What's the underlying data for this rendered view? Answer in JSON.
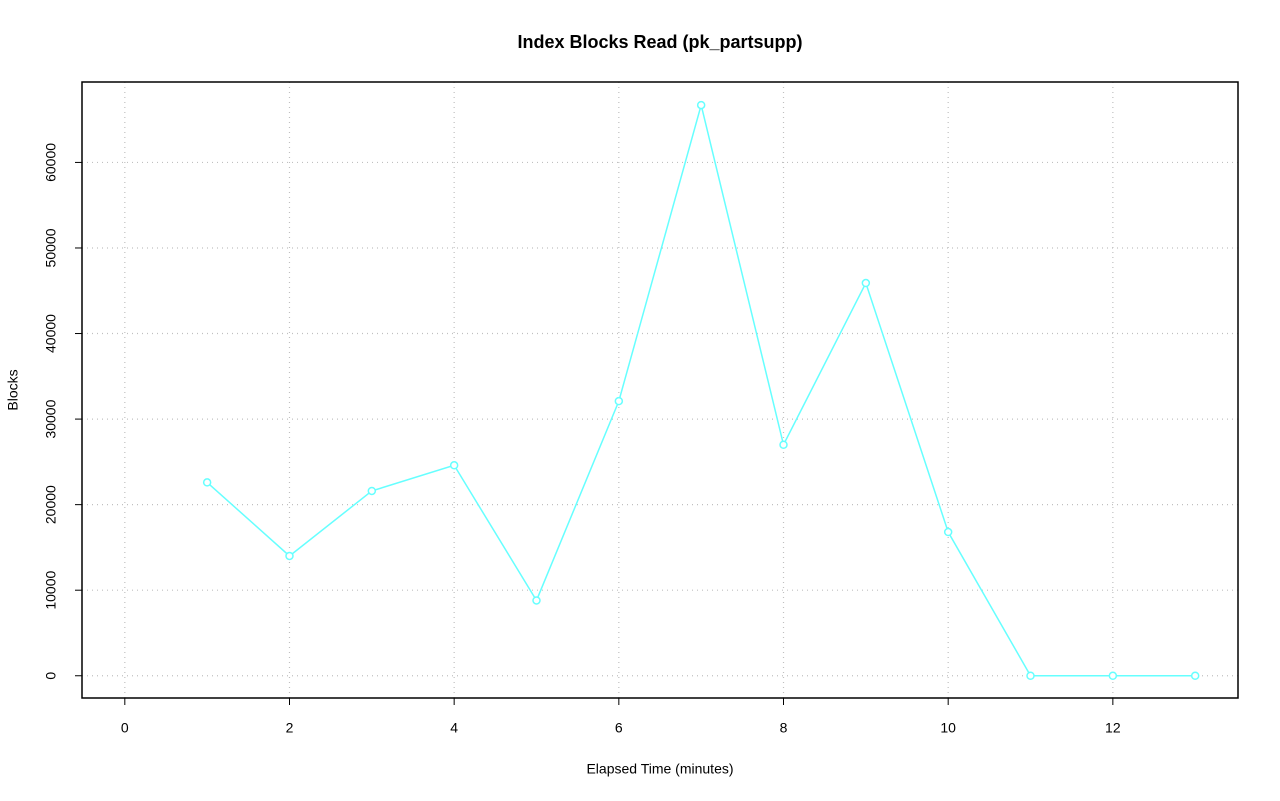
{
  "chart_data": {
    "type": "line",
    "title": "Index Blocks Read (pk_partsupp)",
    "x_label": "Elapsed Time (minutes)",
    "y_label": "Blocks",
    "x": [
      1,
      2,
      3,
      4,
      5,
      6,
      7,
      8,
      9,
      10,
      11,
      12,
      13
    ],
    "series": [
      {
        "name": "pk_partsupp",
        "color": "#66ffff",
        "values": [
          22600,
          14000,
          21600,
          24600,
          8800,
          32100,
          66700,
          27000,
          45900,
          16800,
          0,
          0,
          0
        ]
      }
    ],
    "xlim": [
      -0.52,
      13.52
    ],
    "ylim": [
      -2600,
      69400
    ],
    "xticks": [
      0,
      2,
      4,
      6,
      8,
      10,
      12
    ],
    "yticks": [
      0,
      10000,
      20000,
      30000,
      40000,
      50000,
      60000
    ],
    "grid": true
  }
}
